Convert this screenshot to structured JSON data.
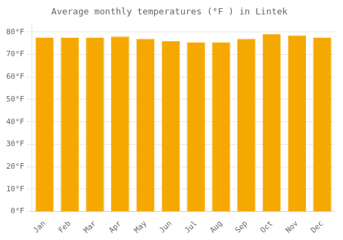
{
  "chart_data": {
    "type": "bar",
    "title": "Average monthly temperatures (°F ) in Lintek",
    "categories": [
      "Jan",
      "Feb",
      "Mar",
      "Apr",
      "May",
      "Jun",
      "Jul",
      "Aug",
      "Sep",
      "Oct",
      "Nov",
      "Dec"
    ],
    "values": [
      77.5,
      77.5,
      77.5,
      78.0,
      77.0,
      76.0,
      75.5,
      75.5,
      77.0,
      79.0,
      78.5,
      77.5
    ],
    "color": "#F5A800",
    "ylim": [
      0,
      84
    ],
    "yticks": [
      {
        "value": 0,
        "label": "0°F"
      },
      {
        "value": 10,
        "label": "10°F"
      },
      {
        "value": 20,
        "label": "20°F"
      },
      {
        "value": 30,
        "label": "30°F"
      },
      {
        "value": 40,
        "label": "40°F"
      },
      {
        "value": 50,
        "label": "50°F"
      },
      {
        "value": 60,
        "label": "60°F"
      },
      {
        "value": 70,
        "label": "70°F"
      },
      {
        "value": 80,
        "label": "80°F"
      }
    ],
    "grid": true
  }
}
